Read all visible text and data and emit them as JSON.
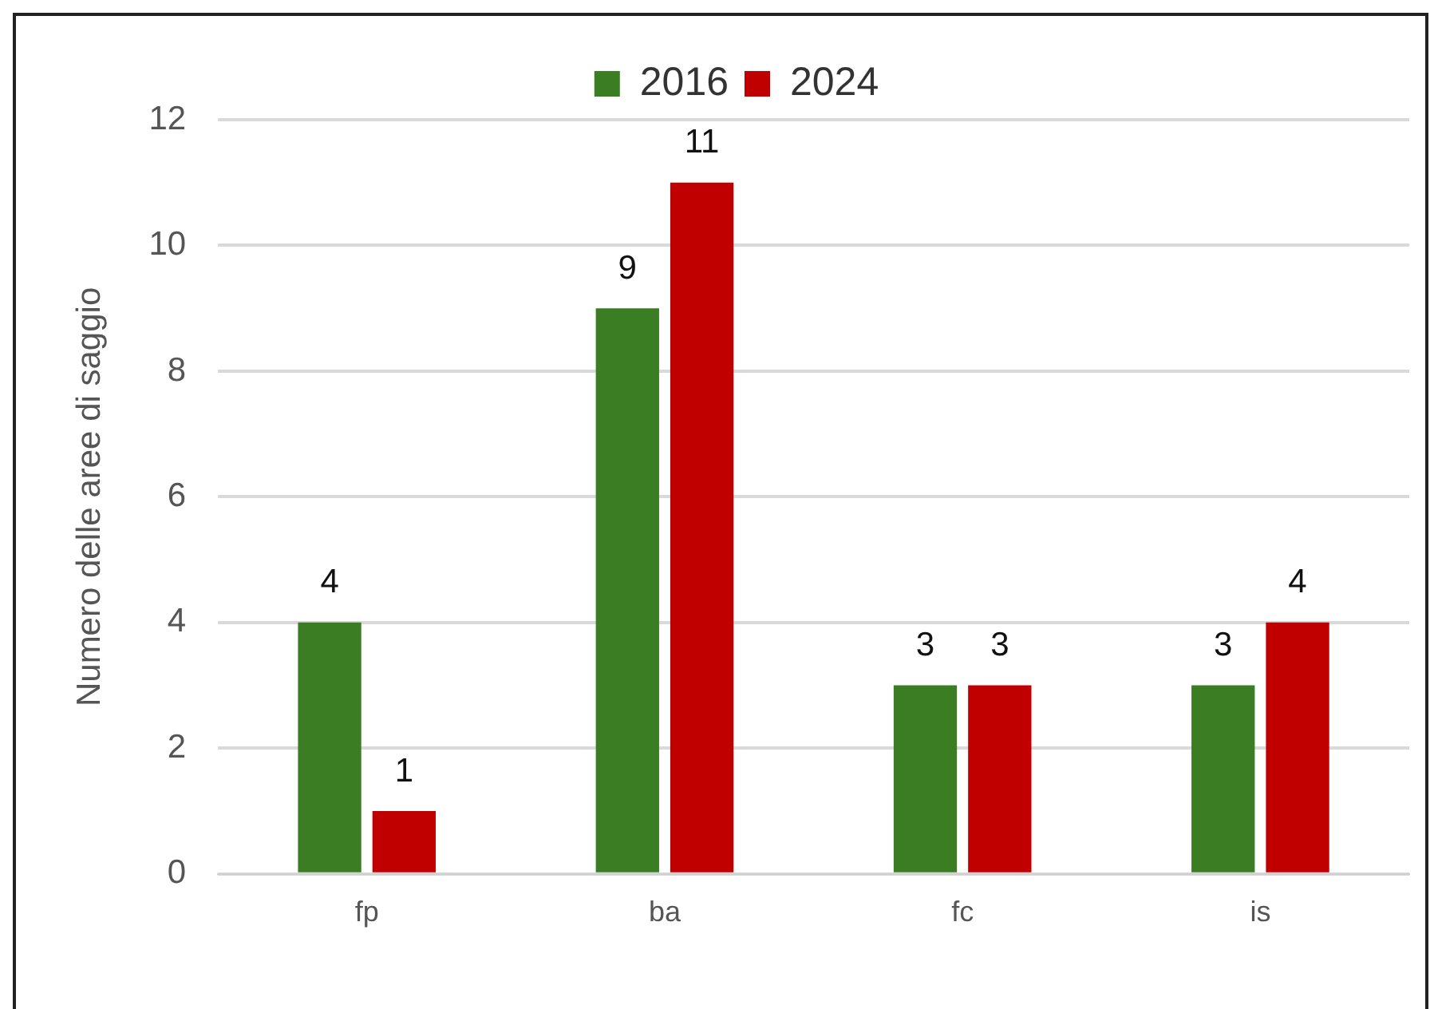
{
  "chart_data": {
    "type": "bar",
    "ylabel": "Numero delle aree di saggio",
    "categories": [
      "fp",
      "ba",
      "fc",
      "is"
    ],
    "series": [
      {
        "name": "2016",
        "color": "#3a7d22",
        "values": [
          4,
          9,
          3,
          3
        ]
      },
      {
        "name": "2024",
        "color": "#c00000",
        "values": [
          1,
          11,
          3,
          4
        ]
      }
    ],
    "ylim": [
      0,
      12
    ],
    "yticks": [
      0,
      2,
      4,
      6,
      8,
      10,
      12
    ],
    "grid": "y",
    "legend": "top",
    "data_labels": true
  }
}
